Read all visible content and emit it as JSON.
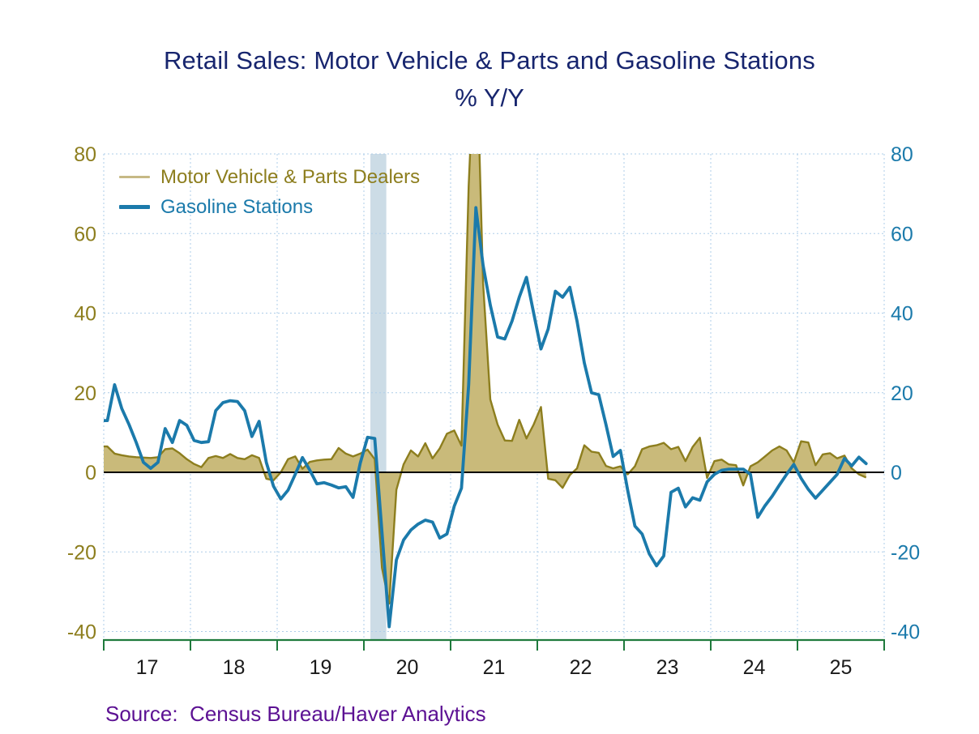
{
  "header": {
    "title": "Retail Sales: Motor Vehicle & Parts and Gasoline Stations",
    "subtitle": "% Y/Y"
  },
  "source": {
    "label": "Source:  Census Bureau/Haver Analytics"
  },
  "chart_data": {
    "type": "line",
    "title": "Retail Sales: Motor Vehicle & Parts and Gasoline Stations",
    "subtitle": "% Y/Y",
    "x_unit": "month",
    "x_start_label": "Jan 2017",
    "x_end_label": "Oct 2025",
    "x_tick_labels": [
      "17",
      "18",
      "19",
      "20",
      "21",
      "22",
      "23",
      "24",
      "25"
    ],
    "y_ticks": [
      80,
      60,
      40,
      20,
      0,
      -20,
      -40
    ],
    "ylim": [
      -42,
      80
    ],
    "grid": "on",
    "legend_position": "top-left",
    "series": [
      {
        "name": "Motor Vehicle & Parts Dealers",
        "style": "area",
        "line_color": "#8d7e1e",
        "fill_color": "#c9ba7a",
        "swatch_color": "#c6b985",
        "label_color": "#8d7e1e",
        "values": [
          6.5,
          4.7,
          4.3,
          4,
          3.8,
          3.7,
          3.6,
          3.8,
          5.8,
          6,
          4.8,
          3.3,
          2.1,
          1.3,
          3.6,
          4.1,
          3.6,
          4.6,
          3.6,
          3.3,
          4.3,
          3.6,
          -1.6,
          -2,
          0,
          3.3,
          4,
          0.9,
          2.6,
          3,
          3.2,
          3.3,
          6.1,
          4.7,
          4,
          4.7,
          5.7,
          3.3,
          -24,
          -33,
          -4.4,
          2,
          5.5,
          4,
          7.3,
          3.5,
          6,
          9.7,
          10.5,
          6.7,
          72,
          113,
          47.5,
          18.3,
          12,
          8,
          7.9,
          13.2,
          8.5,
          12,
          16.4,
          -1.6,
          -2,
          -3.9,
          -0.7,
          1,
          6.8,
          5.2,
          4.9,
          1.6,
          1,
          1.5,
          -0.5,
          1.5,
          5.8,
          6.5,
          6.8,
          7.4,
          5.8,
          6.4,
          2.8,
          6.4,
          8.7,
          -1.4,
          2.8,
          3.2,
          2,
          1.8,
          -3.3,
          1.5,
          2.5,
          4,
          5.5,
          6.5,
          5.5,
          2.5,
          7.8,
          7.5,
          1.8,
          4.5,
          4.8,
          3.5,
          4.2,
          1,
          -0.5,
          -1.3
        ]
      },
      {
        "name": "Gasoline Stations",
        "style": "line",
        "line_color": "#1b7aab",
        "swatch_color": "#1b7aab",
        "label_color": "#1b7aab",
        "values": [
          13,
          22,
          16,
          12,
          7.5,
          2.5,
          1,
          2.5,
          11,
          7.5,
          13,
          11.8,
          8,
          7.5,
          7.7,
          15.5,
          17.5,
          18,
          17.8,
          15.5,
          9,
          12.8,
          2.5,
          -3.5,
          -6.7,
          -4.5,
          -0.5,
          3.7,
          0.6,
          -2.9,
          -2.6,
          -3.2,
          -3.9,
          -3.6,
          -6.3,
          2.3,
          8.8,
          8.5,
          -15,
          -38.8,
          -22,
          -17,
          -14.5,
          -13,
          -12,
          -12.5,
          -16.5,
          -15.5,
          -8.5,
          -4,
          22,
          66.5,
          52,
          42,
          34,
          33.5,
          38,
          44,
          49,
          40,
          31,
          36,
          45.5,
          44,
          46.5,
          38,
          27.5,
          20,
          19.5,
          12,
          4,
          5.5,
          -4.5,
          -13.5,
          -15.5,
          -20.5,
          -23.5,
          -21,
          -5,
          -4,
          -8.7,
          -6.4,
          -7,
          -2.4,
          -0.5,
          0.5,
          0.8,
          0.8,
          0.8,
          -0.5,
          -11.3,
          -8.4,
          -6,
          -3.2,
          -0.5,
          2,
          -1.5,
          -4.3,
          -6.5,
          -4.5,
          -2.5,
          -0.5,
          3.5,
          1.6,
          3.8,
          2.2
        ]
      }
    ],
    "recession_band": {
      "start_month": 36.9,
      "end_month": 39.1,
      "color": "#ccdce6"
    },
    "colors": {
      "grid": "#aecde8",
      "zero_line": "#000000",
      "x_axis": "#1f7a3c",
      "x_labels": "#1a1a1a",
      "left_axis_labels": "#8d7e1e",
      "right_axis_labels": "#1b7aab",
      "title": "#17256e",
      "source": "#5c1193",
      "background": "#ffffff"
    }
  }
}
